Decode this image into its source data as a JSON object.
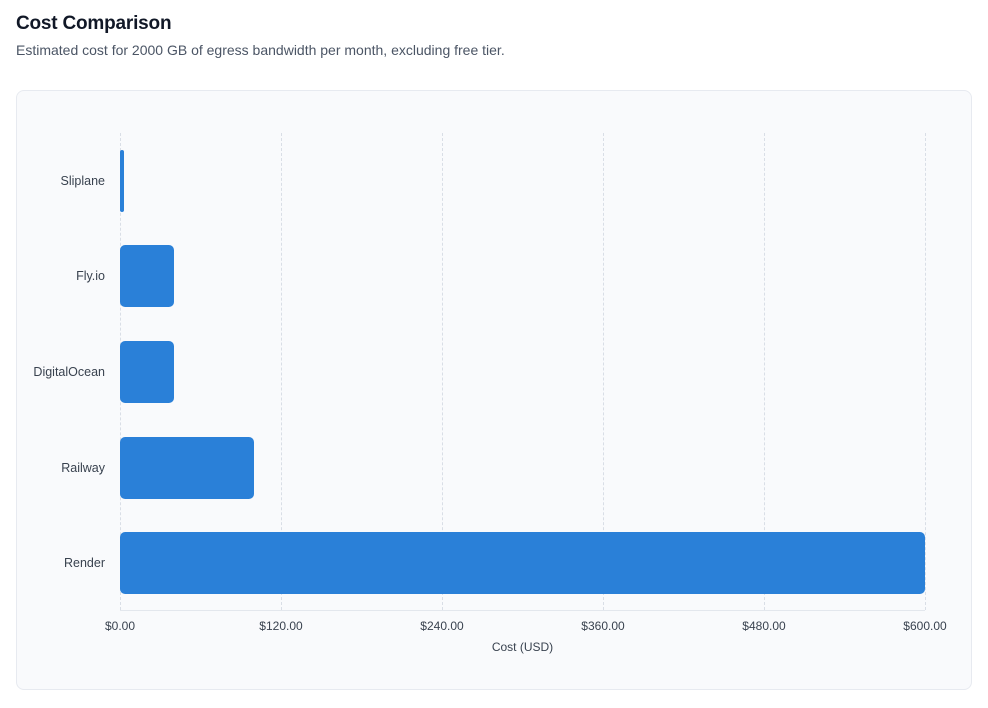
{
  "header": {
    "title": "Cost Comparison",
    "subtitle": "Estimated cost for 2000 GB of egress bandwidth per month, excluding free tier."
  },
  "chart_data": {
    "type": "bar",
    "orientation": "horizontal",
    "title": "Cost Comparison",
    "categories": [
      "Sliplane",
      "Fly.io",
      "DigitalOcean",
      "Railway",
      "Render"
    ],
    "values": [
      3,
      40,
      40,
      100,
      600
    ],
    "xlabel": "Cost (USD)",
    "ylabel": "",
    "xlim": [
      0,
      600
    ],
    "x_ticks": [
      0,
      120,
      240,
      360,
      480,
      600
    ],
    "x_tick_labels": [
      "$0.00",
      "$120.00",
      "$240.00",
      "$360.00",
      "$480.00",
      "$600.00"
    ],
    "grid": "vertical-dashed",
    "legend": "none"
  },
  "colors": {
    "bar": "#2a80d8",
    "grid": "#d9dee6",
    "axis_line": "#e3e7ed",
    "card_bg": "#f9fafc",
    "card_border": "#e7eaf0",
    "title_text": "#111827",
    "subtitle_text": "#4b5565",
    "tick_text": "#39424f",
    "label_text": "#39424f"
  }
}
